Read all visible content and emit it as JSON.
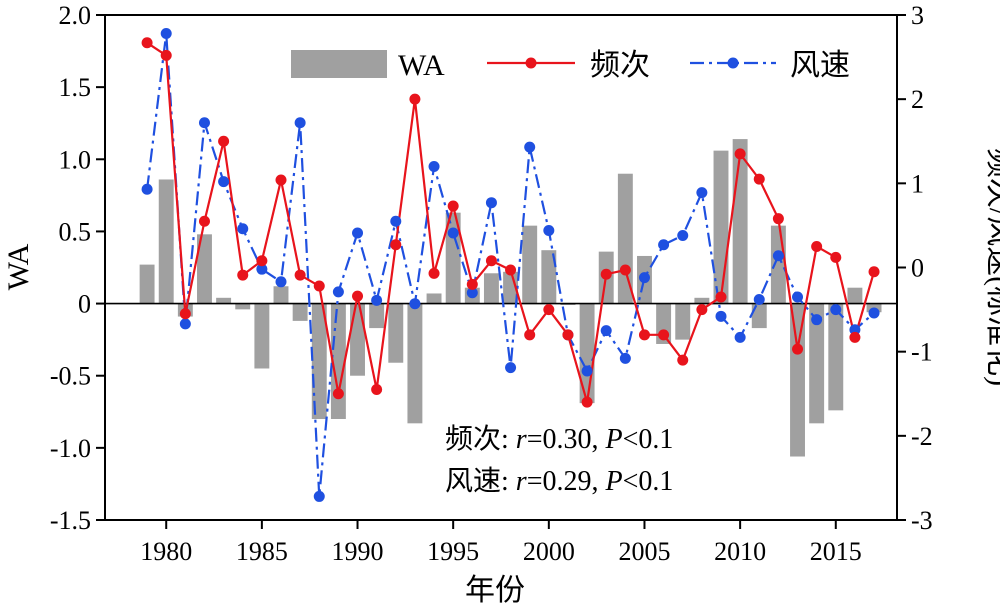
{
  "chart_data": {
    "type": "bar+line",
    "xlabel": "年份",
    "ylabel_left": "WA",
    "ylabel_right": "频次/风速(标准化)",
    "xlim": [
      1976.8,
      2018.2
    ],
    "ylim_left": [
      -1.5,
      2.0
    ],
    "ylim_right": [
      -3,
      3
    ],
    "xticks": [
      1980,
      1985,
      1990,
      1995,
      2000,
      2005,
      2010,
      2015
    ],
    "yticks_left": [
      "2.0",
      "1.5",
      "1.0",
      "0.5",
      "0",
      "-0.5",
      "-1.0",
      "-1.5"
    ],
    "yticks_right": [
      "3",
      "2",
      "1",
      "0",
      "-1",
      "-2",
      "-3"
    ],
    "years": [
      1979,
      1980,
      1981,
      1982,
      1983,
      1984,
      1985,
      1986,
      1987,
      1988,
      1989,
      1990,
      1991,
      1992,
      1993,
      1994,
      1995,
      1996,
      1997,
      1998,
      1999,
      2000,
      2001,
      2002,
      2003,
      2004,
      2005,
      2006,
      2007,
      2008,
      2009,
      2010,
      2011,
      2012,
      2013,
      2014,
      2015,
      2016,
      2017
    ],
    "series": [
      {
        "name": "WA",
        "kind": "bar",
        "axis": "left",
        "color": "#a0a0a0",
        "values": [
          0.27,
          0.86,
          -0.09,
          0.48,
          0.04,
          -0.04,
          -0.45,
          0.12,
          -0.12,
          -0.8,
          -0.8,
          -0.5,
          -0.17,
          -0.41,
          -0.83,
          0.07,
          0.63,
          0.11,
          0.21,
          0.22,
          0.54,
          0.37,
          -0.01,
          -0.69,
          0.36,
          0.9,
          0.33,
          -0.28,
          -0.25,
          0.04,
          1.06,
          1.14,
          -0.17,
          0.54,
          -1.06,
          -0.83,
          -0.74,
          0.11,
          -0.06
        ]
      },
      {
        "name": "频次",
        "kind": "line",
        "axis": "right",
        "color": "#e8141c",
        "dash": "solid",
        "values": [
          2.67,
          2.52,
          -0.55,
          0.55,
          1.5,
          -0.09,
          0.08,
          1.04,
          -0.09,
          -0.22,
          -1.5,
          -0.34,
          -1.45,
          0.27,
          2.0,
          -0.07,
          0.73,
          -0.2,
          0.08,
          -0.03,
          -0.8,
          -0.5,
          -0.8,
          -1.6,
          -0.08,
          -0.03,
          -0.8,
          -0.8,
          -1.1,
          -0.5,
          -0.35,
          1.35,
          1.05,
          0.58,
          -0.97,
          0.25,
          0.12,
          -0.83,
          -0.05
        ]
      },
      {
        "name": "风速",
        "kind": "line",
        "axis": "right",
        "color": "#1f50e0",
        "dash": "dashdot",
        "values": [
          0.93,
          2.78,
          -0.67,
          1.72,
          1.02,
          0.46,
          -0.02,
          -0.17,
          1.72,
          -2.72,
          -0.29,
          0.41,
          -0.39,
          0.55,
          -0.43,
          1.2,
          0.41,
          -0.3,
          0.77,
          -1.19,
          1.43,
          0.44,
          -0.8,
          -1.23,
          -0.75,
          -1.08,
          -0.12,
          0.27,
          0.38,
          0.89,
          -0.58,
          -0.83,
          -0.38,
          0.14,
          -0.35,
          -0.62,
          -0.5,
          -0.74,
          -0.54
        ]
      }
    ],
    "annotations": [
      {
        "label": "频次",
        "r": "0.30",
        "p": "0.1"
      },
      {
        "label": "风速",
        "r": "0.29",
        "p": "0.1"
      }
    ],
    "stat_symbols": {
      "colon": ": ",
      "r": "r",
      "eq": "=",
      "sep": ", ",
      "p": "P",
      "lt": "<"
    },
    "legend_position": "top-right",
    "grid": false
  }
}
